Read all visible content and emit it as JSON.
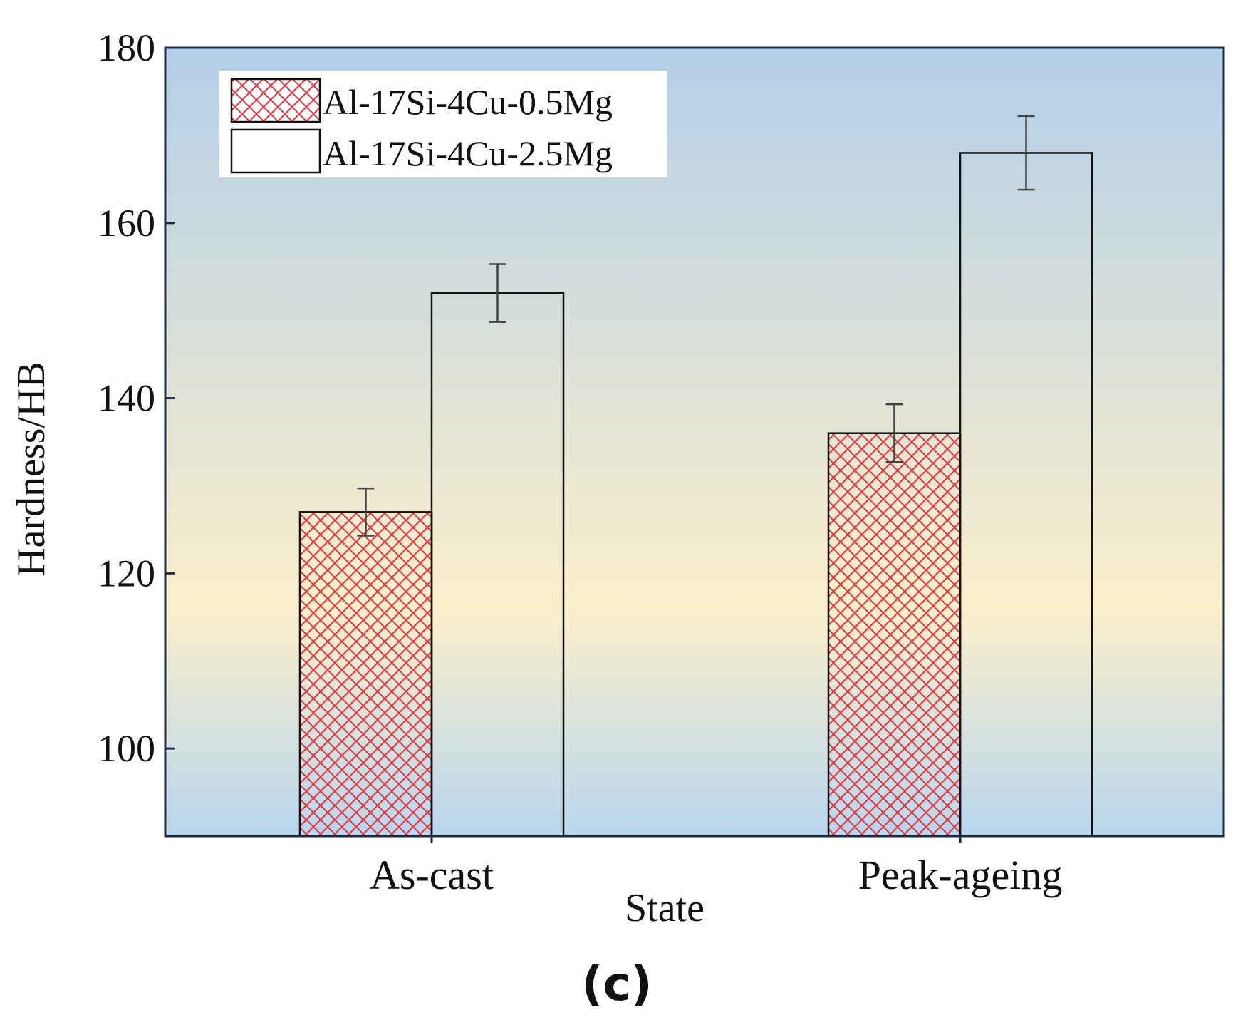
{
  "chart_data": {
    "type": "bar",
    "categories": [
      "As-cast",
      "Peak-ageing"
    ],
    "series": [
      {
        "name": "Al-17Si-4Cu-0.5Mg",
        "values": [
          127,
          136
        ],
        "errors": [
          2.7,
          3.3
        ],
        "fill": "crosshatch",
        "hatch_color": "#e8323c"
      },
      {
        "name": "Al-17Si-4Cu-2.5Mg",
        "values": [
          152,
          168
        ],
        "errors": [
          3.3,
          4.2
        ],
        "fill": "none",
        "hatch_color": "#111111"
      }
    ],
    "xlabel": "State",
    "ylabel": "Hardness/HB",
    "ylim": [
      90,
      180
    ],
    "yticks": [
      100,
      120,
      140,
      160,
      180
    ],
    "legend_position": "top-left",
    "grid": false
  },
  "caption": "(c)",
  "colors": {
    "axis": "#1a2b4a",
    "background_top": "#b4cfe8",
    "background_middle": "#fbefcb",
    "background_bottom": "#b9d6ee",
    "error_bar": "#444444",
    "bar_outline": "#111111"
  }
}
